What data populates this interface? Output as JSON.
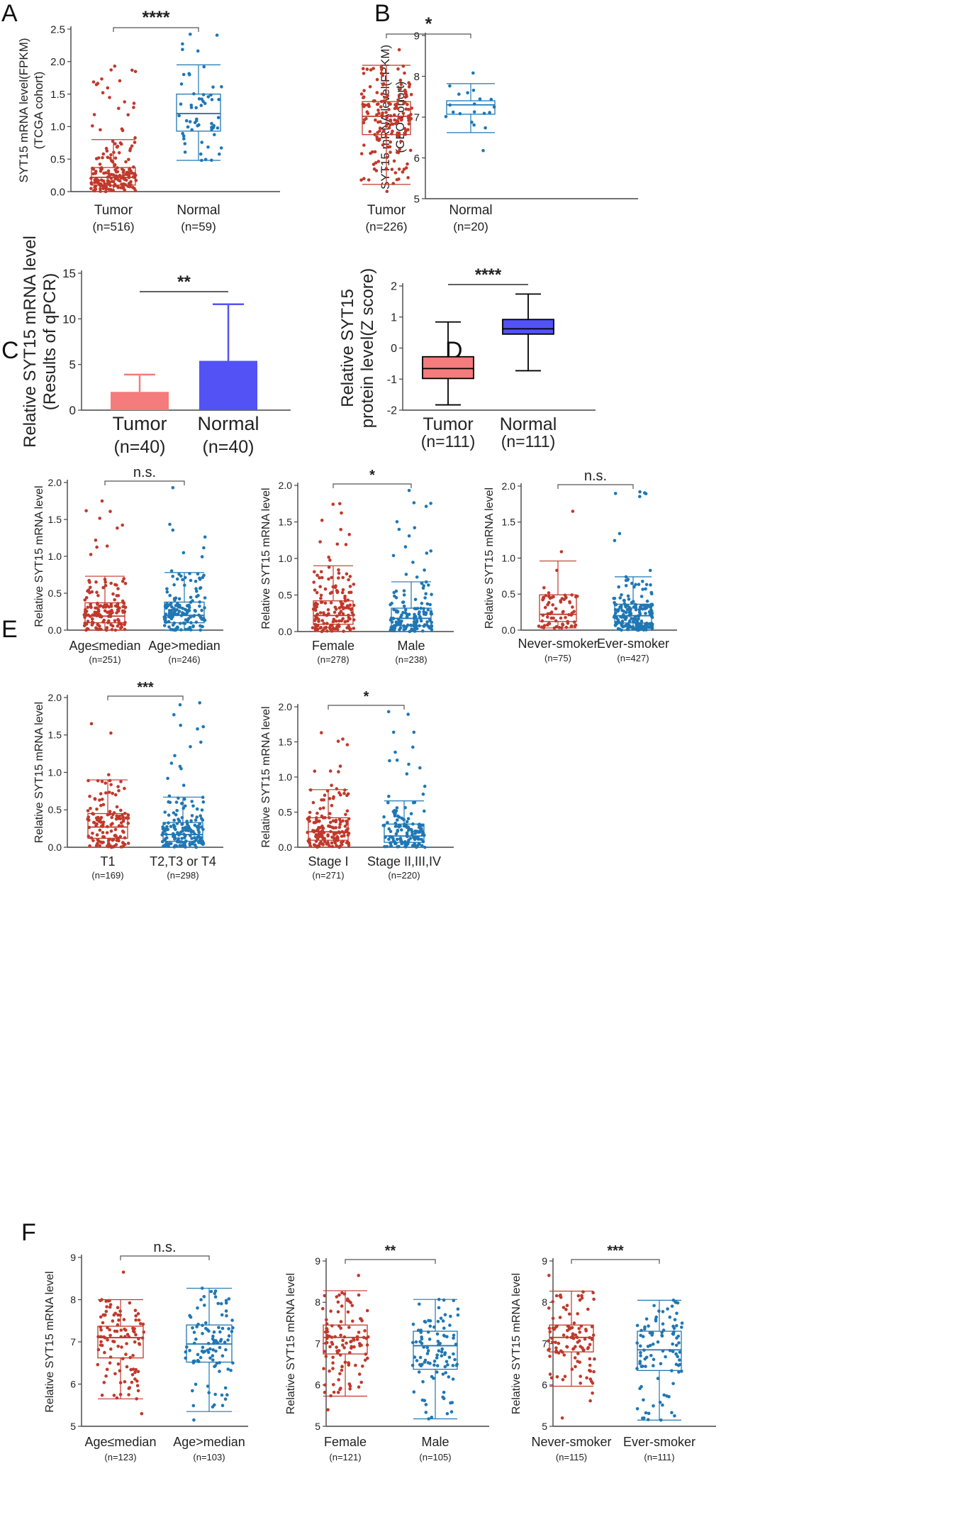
{
  "colors": {
    "tumor": "#c0392b",
    "normal": "#1f77b4",
    "bar_tumor": "#f47c7c",
    "bar_normal": "#5252f5",
    "box_tumor_fill": "#f47c7c",
    "box_normal_fill": "#5252f5",
    "axis": "#444444"
  },
  "panels": [
    {
      "letter": "A"
    },
    {
      "letter": "B"
    },
    {
      "letter": "C"
    },
    {
      "letter": "D"
    },
    {
      "letter": "E"
    },
    {
      "letter": "F"
    }
  ],
  "chart_data": [
    {
      "id": "A",
      "type": "box-scatter",
      "ylabel": [
        "SYT15 mRNA level(FPKM)",
        "(TCGA cohort)"
      ],
      "ylim": [
        0,
        2.5
      ],
      "yticks": [
        "0.0",
        "0.5",
        "1.0",
        "1.5",
        "2.0",
        "2.5"
      ],
      "ytick_values": [
        0,
        0.5,
        1,
        1.5,
        2,
        2.5
      ],
      "significance": "****",
      "groups": [
        {
          "name": "Tumor",
          "n": "(n=516)",
          "q1": 0.1,
          "median": 0.22,
          "q3": 0.37,
          "whisker_low": 0.0,
          "whisker_high": 0.8,
          "max": 1.93,
          "min": 0.0,
          "points": 180,
          "color_key": "tumor"
        },
        {
          "name": "Normal",
          "n": "(n=59)",
          "q1": 0.93,
          "median": 1.2,
          "q3": 1.5,
          "whisker_low": 0.48,
          "whisker_high": 1.95,
          "max": 2.42,
          "min": 0.48,
          "points": 59,
          "color_key": "normal"
        }
      ]
    },
    {
      "id": "B",
      "type": "box-scatter",
      "ylabel": [
        "SYT15 mRNA level(FPKM)",
        "(GEO cohort)"
      ],
      "ylim": [
        5,
        9
      ],
      "yticks": [
        "5",
        "6",
        "7",
        "8",
        "9"
      ],
      "ytick_values": [
        5,
        6,
        7,
        8,
        9
      ],
      "significance": "*",
      "groups": [
        {
          "name": "Tumor",
          "n": "(n=226)",
          "q1": 6.57,
          "median": 7.02,
          "q3": 7.38,
          "whisker_low": 5.35,
          "whisker_high": 8.27,
          "max": 8.65,
          "min": 5.18,
          "points": 170,
          "color_key": "tumor"
        },
        {
          "name": "Normal",
          "n": "(n=20)",
          "q1": 7.07,
          "median": 7.3,
          "q3": 7.4,
          "whisker_low": 6.62,
          "whisker_high": 7.82,
          "max": 8.08,
          "min": 6.18,
          "points": 20,
          "color_key": "normal"
        }
      ]
    },
    {
      "id": "C",
      "type": "bar",
      "ylabel": [
        "Relative SYT15 mRNA level",
        "(Results of qPCR)"
      ],
      "ylim": [
        0,
        15
      ],
      "yticks": [
        "0",
        "5",
        "10",
        "15"
      ],
      "ytick_values": [
        0,
        5,
        10,
        15
      ],
      "significance": "**",
      "categories": [
        "Tumor",
        "Normal"
      ],
      "n_labels": [
        "(n=40)",
        "(n=40)"
      ],
      "values": [
        2.0,
        5.4
      ],
      "error_upper": [
        3.9,
        11.6
      ]
    },
    {
      "id": "D",
      "type": "box",
      "ylabel": [
        "Relative SYT15",
        "protein level(Z score)"
      ],
      "ylim": [
        -2,
        2
      ],
      "yticks": [
        "-2",
        "-1",
        "0",
        "1",
        "2"
      ],
      "ytick_values": [
        -2,
        -1,
        0,
        1,
        2
      ],
      "significance": "****",
      "groups": [
        {
          "name": "Tumor",
          "n": "(n=111)",
          "q1": -0.98,
          "median": -0.66,
          "q3": -0.28,
          "whisker_low": -1.83,
          "whisker_high": 0.84,
          "color_key": "box_tumor_fill"
        },
        {
          "name": "Normal",
          "n": "(n=111)",
          "q1": 0.45,
          "median": 0.62,
          "q3": 0.92,
          "whisker_low": -0.73,
          "whisker_high": 1.74,
          "color_key": "box_normal_fill"
        }
      ]
    },
    {
      "id": "E1",
      "type": "box-scatter",
      "ylabel": [
        "Relative SYT15 mRNA level"
      ],
      "ylim": [
        0,
        2.0
      ],
      "yticks": [
        "0.0",
        "0.5",
        "1.0",
        "1.5",
        "2.0"
      ],
      "ytick_values": [
        0,
        0.5,
        1,
        1.5,
        2
      ],
      "significance": "n.s.",
      "groups": [
        {
          "name": "Age≤median",
          "n": "(n=251)",
          "q1": 0.1,
          "median": 0.19,
          "q3": 0.37,
          "whisker_low": 0.0,
          "whisker_high": 0.73,
          "max": 1.75,
          "min": 0.0,
          "points": 150,
          "color_key": "tumor"
        },
        {
          "name": "Age>median",
          "n": "(n=246)",
          "q1": 0.1,
          "median": 0.2,
          "q3": 0.38,
          "whisker_low": 0.0,
          "whisker_high": 0.78,
          "max": 1.93,
          "min": 0.0,
          "points": 150,
          "color_key": "normal"
        }
      ]
    },
    {
      "id": "E2",
      "type": "box-scatter",
      "ylabel": [
        "Relative SYT15 mRNA level"
      ],
      "ylim": [
        0,
        2.0
      ],
      "yticks": [
        "0.0",
        "0.5",
        "1.0",
        "1.5",
        "2.0"
      ],
      "ytick_values": [
        0,
        0.5,
        1,
        1.5,
        2
      ],
      "significance": "*",
      "groups": [
        {
          "name": "Female",
          "n": "(n=278)",
          "q1": 0.1,
          "median": 0.22,
          "q3": 0.42,
          "whisker_low": 0.0,
          "whisker_high": 0.9,
          "max": 1.75,
          "min": 0.0,
          "points": 160,
          "color_key": "tumor"
        },
        {
          "name": "Male",
          "n": "(n=238)",
          "q1": 0.08,
          "median": 0.18,
          "q3": 0.32,
          "whisker_low": 0.0,
          "whisker_high": 0.68,
          "max": 1.93,
          "min": 0.0,
          "points": 140,
          "color_key": "normal"
        }
      ]
    },
    {
      "id": "E3",
      "type": "box-scatter",
      "ylabel": [
        "Relative SYT15 mRNA level"
      ],
      "ylim": [
        0,
        2.0
      ],
      "yticks": [
        "0.0",
        "0.5",
        "1.0",
        "1.5",
        "2.0"
      ],
      "ytick_values": [
        0,
        0.5,
        1,
        1.5,
        2
      ],
      "significance": "n.s.",
      "groups": [
        {
          "name": "Never-smoker",
          "n": "(n=75)",
          "q1": 0.12,
          "median": 0.22,
          "q3": 0.49,
          "whisker_low": 0.03,
          "whisker_high": 0.96,
          "max": 1.65,
          "min": 0.03,
          "points": 70,
          "color_key": "tumor"
        },
        {
          "name": "Ever-smoker",
          "n": "(n=427)",
          "q1": 0.1,
          "median": 0.2,
          "q3": 0.36,
          "whisker_low": 0.0,
          "whisker_high": 0.74,
          "max": 1.92,
          "min": 0.0,
          "points": 200,
          "color_key": "normal"
        }
      ]
    },
    {
      "id": "E4",
      "type": "box-scatter",
      "ylabel": [
        "Relative SYT15 mRNA level"
      ],
      "ylim": [
        0,
        2.0
      ],
      "yticks": [
        "0.0",
        "0.5",
        "1.0",
        "1.5",
        "2.0"
      ],
      "ytick_values": [
        0,
        0.5,
        1,
        1.5,
        2
      ],
      "significance": "***",
      "groups": [
        {
          "name": "T1",
          "n": "(n=169)",
          "q1": 0.12,
          "median": 0.27,
          "q3": 0.45,
          "whisker_low": 0.0,
          "whisker_high": 0.9,
          "max": 1.65,
          "min": 0.0,
          "points": 130,
          "color_key": "tumor"
        },
        {
          "name": "T2,T3 or T4",
          "n": "(n=298)",
          "q1": 0.08,
          "median": 0.17,
          "q3": 0.33,
          "whisker_low": 0.0,
          "whisker_high": 0.67,
          "max": 1.93,
          "min": 0.0,
          "points": 170,
          "color_key": "normal"
        }
      ]
    },
    {
      "id": "E5",
      "type": "box-scatter",
      "ylabel": [
        "Relative SYT15 mRNA level"
      ],
      "ylim": [
        0,
        2.0
      ],
      "yticks": [
        "0.0",
        "0.5",
        "1.0",
        "1.5",
        "2.0"
      ],
      "ytick_values": [
        0,
        0.5,
        1,
        1.5,
        2
      ],
      "significance": "*",
      "groups": [
        {
          "name": "Stage I",
          "n": "(n=271)",
          "q1": 0.1,
          "median": 0.22,
          "q3": 0.42,
          "whisker_low": 0.0,
          "whisker_high": 0.82,
          "max": 1.63,
          "min": 0.0,
          "points": 160,
          "color_key": "tumor"
        },
        {
          "name": "Stage II,III,IV",
          "n": "(n=220)",
          "q1": 0.07,
          "median": 0.16,
          "q3": 0.33,
          "whisker_low": 0.0,
          "whisker_high": 0.66,
          "max": 1.93,
          "min": 0.0,
          "points": 140,
          "color_key": "normal"
        }
      ]
    },
    {
      "id": "F1",
      "type": "box-scatter",
      "ylabel": [
        "Relative SYT15 mRNA level"
      ],
      "ylim": [
        5,
        9
      ],
      "yticks": [
        "5",
        "6",
        "7",
        "8",
        "9"
      ],
      "ytick_values": [
        5,
        6,
        7,
        8,
        9
      ],
      "significance": "n.s.",
      "groups": [
        {
          "name": "Age≤median",
          "n": "(n=123)",
          "q1": 6.62,
          "median": 7.1,
          "q3": 7.37,
          "whisker_low": 5.65,
          "whisker_high": 8.0,
          "max": 8.65,
          "min": 5.3,
          "points": 110,
          "color_key": "tumor"
        },
        {
          "name": "Age>median",
          "n": "(n=103)",
          "q1": 6.52,
          "median": 6.95,
          "q3": 7.4,
          "whisker_low": 5.35,
          "whisker_high": 8.27,
          "max": 8.27,
          "min": 5.15,
          "points": 100,
          "color_key": "normal"
        }
      ]
    },
    {
      "id": "F2",
      "type": "box-scatter",
      "ylabel": [
        "Relative SYT15 mRNA level"
      ],
      "ylim": [
        5,
        9
      ],
      "yticks": [
        "5",
        "6",
        "7",
        "8",
        "9"
      ],
      "ytick_values": [
        5,
        6,
        7,
        8,
        9
      ],
      "significance": "**",
      "groups": [
        {
          "name": "Female",
          "n": "(n=121)",
          "q1": 6.75,
          "median": 7.15,
          "q3": 7.45,
          "whisker_low": 5.73,
          "whisker_high": 8.28,
          "max": 8.65,
          "min": 5.4,
          "points": 110,
          "color_key": "tumor"
        },
        {
          "name": "Male",
          "n": "(n=105)",
          "q1": 6.38,
          "median": 6.95,
          "q3": 7.3,
          "whisker_low": 5.18,
          "whisker_high": 8.07,
          "max": 8.07,
          "min": 5.18,
          "points": 100,
          "color_key": "normal"
        }
      ]
    },
    {
      "id": "F3",
      "type": "box-scatter",
      "ylabel": [
        "Relative SYT15 mRNA level"
      ],
      "ylim": [
        5,
        9
      ],
      "yticks": [
        "5",
        "6",
        "7",
        "8",
        "9"
      ],
      "ytick_values": [
        5,
        6,
        7,
        8,
        9
      ],
      "significance": "***",
      "groups": [
        {
          "name": "Never-smoker",
          "n": "(n=115)",
          "q1": 6.8,
          "median": 7.15,
          "q3": 7.45,
          "whisker_low": 5.97,
          "whisker_high": 8.27,
          "max": 8.65,
          "min": 5.2,
          "points": 110,
          "color_key": "tumor"
        },
        {
          "name": "Ever-smoker",
          "n": "(n=111)",
          "q1": 6.35,
          "median": 6.85,
          "q3": 7.3,
          "whisker_low": 5.15,
          "whisker_high": 8.05,
          "max": 8.05,
          "min": 5.15,
          "points": 100,
          "color_key": "normal"
        }
      ]
    }
  ]
}
